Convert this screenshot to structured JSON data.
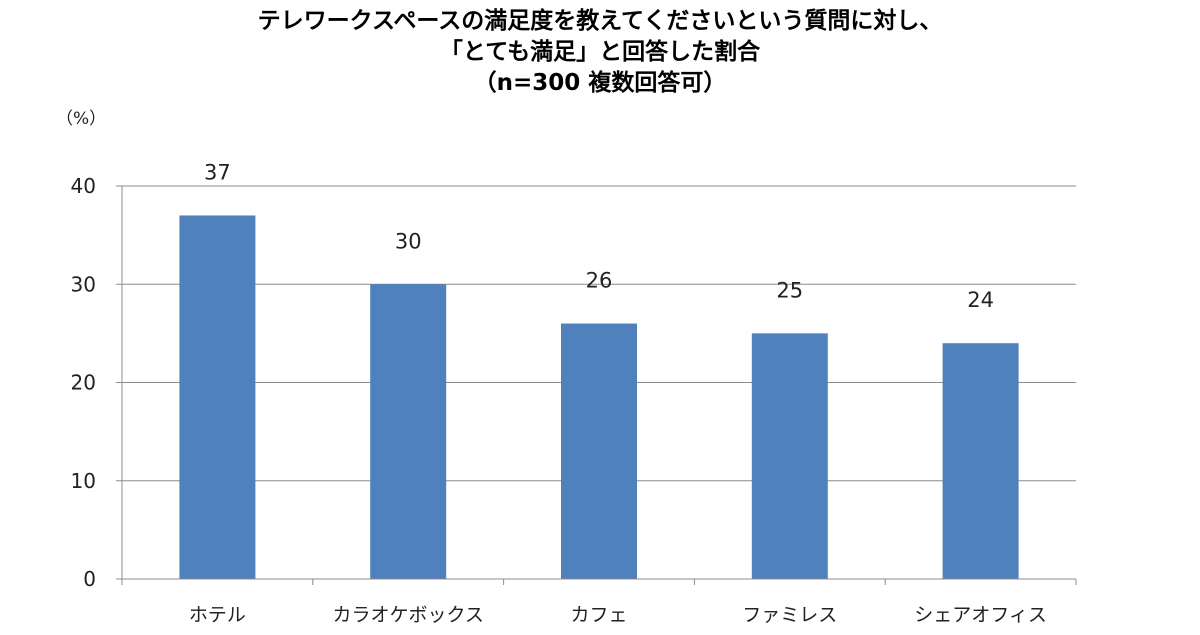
{
  "chart_data": {
    "type": "bar",
    "title_lines": [
      "テレワークスペースの満足度を教えてくださいという質問に対し、",
      "「とても満足」と回答した割合",
      "（n=300 複数回答可）"
    ],
    "y_unit": "（%）",
    "categories": [
      "ホテル",
      "カラオケボックス",
      "カフェ",
      "ファミレス",
      "シェアオフィス"
    ],
    "values": [
      37,
      30,
      26,
      25,
      24
    ],
    "data_labels": [
      "37",
      "30",
      "26",
      "25",
      "24"
    ],
    "yticks": [
      "0",
      "10",
      "20",
      "30",
      "40"
    ],
    "ylim": [
      0,
      40
    ],
    "grid": true,
    "bar_color": "#4f81bd"
  }
}
